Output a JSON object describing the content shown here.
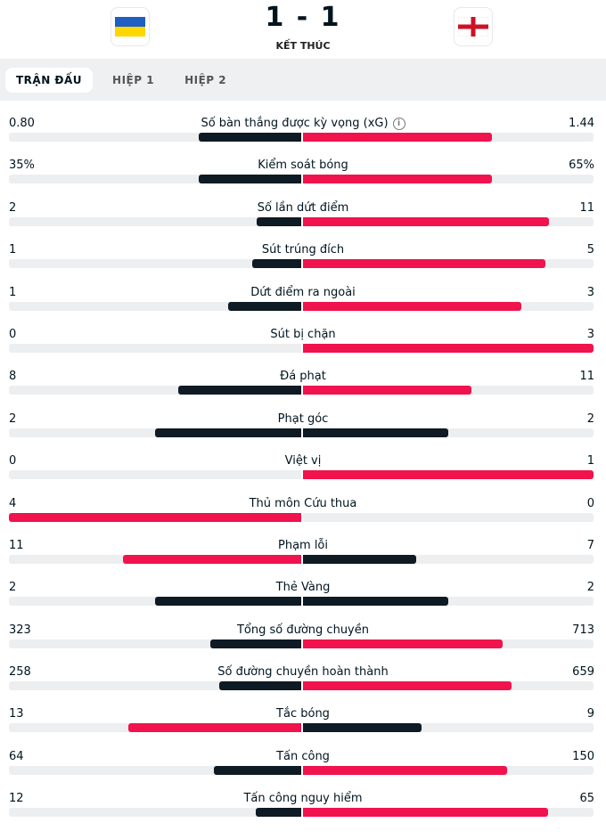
{
  "header": {
    "score": "1 - 1",
    "status": "KẾT THÚC",
    "home_flag_icon": "ukraine-flag",
    "away_flag_icon": "england-flag"
  },
  "tabs": [
    "TRẬN ĐẤU",
    "HIỆP 1",
    "HIỆP 2"
  ],
  "colors": {
    "dark": "#0e1a24",
    "red": "#f0134d",
    "track": "#eceef0"
  },
  "stats": [
    {
      "label": "Số bàn thắng được kỳ vọng (xG)",
      "home": "0.80",
      "away": "1.44",
      "home_fill": 0.35,
      "away_fill": 0.65,
      "info": true
    },
    {
      "label": "Kiểm soát bóng",
      "home": "35%",
      "away": "65%",
      "home_fill": 0.35,
      "away_fill": 0.65
    },
    {
      "label": "Số lần dứt điểm",
      "home": "2",
      "away": "11",
      "home_fill": 0.154,
      "away_fill": 0.846
    },
    {
      "label": "Sút trúng đích",
      "home": "1",
      "away": "5",
      "home_fill": 0.167,
      "away_fill": 0.833
    },
    {
      "label": "Dứt điểm ra ngoài",
      "home": "1",
      "away": "3",
      "home_fill": 0.25,
      "away_fill": 0.75
    },
    {
      "label": "Sút bị chặn",
      "home": "0",
      "away": "3",
      "home_fill": 0,
      "away_fill": 1
    },
    {
      "label": "Đá phạt",
      "home": "8",
      "away": "11",
      "home_fill": 0.421,
      "away_fill": 0.579
    },
    {
      "label": "Phạt góc",
      "home": "2",
      "away": "2",
      "home_fill": 0.5,
      "away_fill": 0.5
    },
    {
      "label": "Việt vị",
      "home": "0",
      "away": "1",
      "home_fill": 0,
      "away_fill": 1
    },
    {
      "label": "Thủ môn Cứu thua",
      "home": "4",
      "away": "0",
      "home_fill": 1,
      "away_fill": 0
    },
    {
      "label": "Phạm lỗi",
      "home": "11",
      "away": "7",
      "home_fill": 0.611,
      "away_fill": 0.389
    },
    {
      "label": "Thẻ Vàng",
      "home": "2",
      "away": "2",
      "home_fill": 0.5,
      "away_fill": 0.5
    },
    {
      "label": "Tổng số đường chuyền",
      "home": "323",
      "away": "713",
      "home_fill": 0.312,
      "away_fill": 0.688
    },
    {
      "label": "Số đường chuyền hoàn thành",
      "home": "258",
      "away": "659",
      "home_fill": 0.281,
      "away_fill": 0.719
    },
    {
      "label": "Tắc bóng",
      "home": "13",
      "away": "9",
      "home_fill": 0.591,
      "away_fill": 0.409
    },
    {
      "label": "Tấn công",
      "home": "64",
      "away": "150",
      "home_fill": 0.299,
      "away_fill": 0.701
    },
    {
      "label": "Tấn công nguy hiểm",
      "home": "12",
      "away": "65",
      "home_fill": 0.156,
      "away_fill": 0.844
    }
  ]
}
